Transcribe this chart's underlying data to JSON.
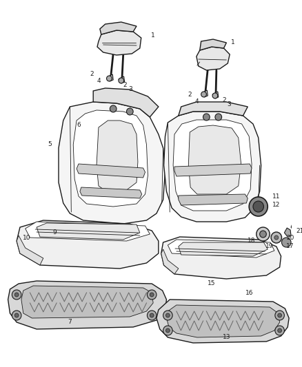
{
  "bg_color": "#ffffff",
  "fig_width": 4.38,
  "fig_height": 5.33,
  "dpi": 100,
  "line_color": "#1a1a1a",
  "fill_light": "#f0f0f0",
  "fill_mid": "#d8d8d8",
  "fill_dark": "#b0b0b0",
  "fill_white": "#ffffff",
  "label_fontsize": 6.5,
  "label_color": "#1a1a1a"
}
